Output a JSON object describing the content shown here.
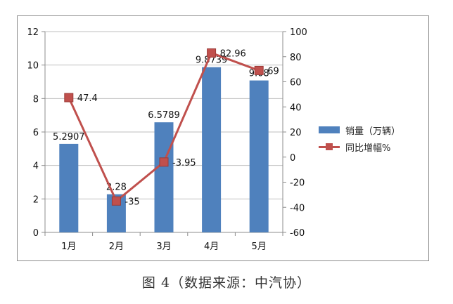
{
  "chart_data": {
    "type": "bar",
    "categories": [
      "1月",
      "2月",
      "3月",
      "4月",
      "5月"
    ],
    "series": [
      {
        "name": "销量（万辆）",
        "type": "bar",
        "axis": "left",
        "values": [
          5.2907,
          2.28,
          6.5789,
          9.8739,
          9.08
        ],
        "labels": [
          "5.2907",
          "2.28",
          "6.5789",
          "9.8739",
          "9.08"
        ],
        "color": "#4f81bd"
      },
      {
        "name": "同比增幅%",
        "type": "line",
        "axis": "right",
        "values": [
          47.4,
          -35,
          -3.95,
          82.96,
          69
        ],
        "labels": [
          "47.4",
          "-35",
          "-3.95",
          "82.96",
          "69"
        ],
        "color": "#c0504d"
      }
    ],
    "y_left": {
      "min": 0,
      "max": 12,
      "step": 2,
      "ticks": [
        "0",
        "2",
        "4",
        "6",
        "8",
        "10",
        "12"
      ]
    },
    "y_right": {
      "min": -60,
      "max": 100,
      "step": 20,
      "ticks": [
        "-60",
        "-40",
        "-20",
        "0",
        "20",
        "40",
        "60",
        "80",
        "100"
      ]
    },
    "grid": true,
    "legend_position": "right"
  },
  "caption": "图 4（数据来源：中汽协）"
}
